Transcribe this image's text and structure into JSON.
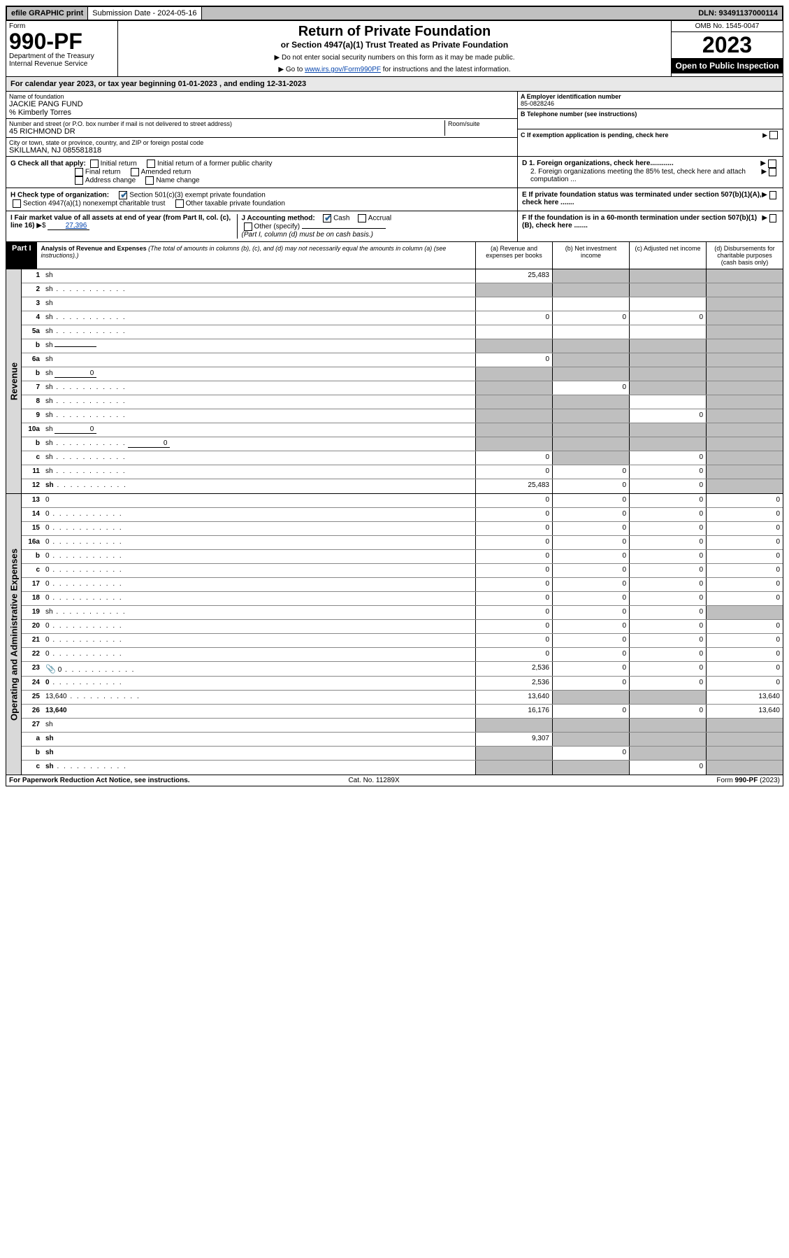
{
  "topbar": {
    "efile": "efile GRAPHIC print",
    "sub_label": "Submission Date - 2024-05-16",
    "dln": "DLN: 93491137000114"
  },
  "header": {
    "form_word": "Form",
    "form_num": "990-PF",
    "dept1": "Department of the Treasury",
    "dept2": "Internal Revenue Service",
    "title": "Return of Private Foundation",
    "subtitle": "or Section 4947(a)(1) Trust Treated as Private Foundation",
    "instr1": "▶ Do not enter social security numbers on this form as it may be made public.",
    "instr2_a": "▶ Go to ",
    "instr2_link": "www.irs.gov/Form990PF",
    "instr2_b": " for instructions and the latest information.",
    "omb": "OMB No. 1545-0047",
    "year": "2023",
    "open": "Open to Public Inspection"
  },
  "calendar": "For calendar year 2023, or tax year beginning 01-01-2023                          , and ending 12-31-2023",
  "info": {
    "name_lbl": "Name of foundation",
    "name": "JACKIE PANG FUND",
    "care_of": "% Kimberly Torres",
    "addr_lbl": "Number and street (or P.O. box number if mail is not delivered to street address)",
    "addr": "45 RICHMOND DR",
    "room_lbl": "Room/suite",
    "city_lbl": "City or town, state or province, country, and ZIP or foreign postal code",
    "city": "SKILLMAN, NJ  085581818",
    "ein_lbl": "A Employer identification number",
    "ein": "85-0828246",
    "tel_lbl": "B Telephone number (see instructions)",
    "exempt_lbl": "C If exemption application is pending, check here",
    "d1": "D 1. Foreign organizations, check here............",
    "d2": "2. Foreign organizations meeting the 85% test, check here and attach computation ...",
    "e": "E  If private foundation status was terminated under section 507(b)(1)(A), check here .......",
    "f": "F  If the foundation is in a 60-month termination under section 507(b)(1)(B), check here .......",
    "g_label": "G Check all that apply:",
    "g_opts": [
      "Initial return",
      "Initial return of a former public charity",
      "Final return",
      "Amended return",
      "Address change",
      "Name change"
    ],
    "h_label": "H Check type of organization:",
    "h_opts": [
      "Section 501(c)(3) exempt private foundation",
      "Section 4947(a)(1) nonexempt charitable trust",
      "Other taxable private foundation"
    ],
    "i_label": "I Fair market value of all assets at end of year (from Part II, col. (c), line 16)",
    "i_val": "27,396",
    "j_label": "J Accounting method:",
    "j_opts": [
      "Cash",
      "Accrual"
    ],
    "j_other": "Other (specify)",
    "j_note": "(Part I, column (d) must be on cash basis.)"
  },
  "part1": {
    "label": "Part I",
    "title": "Analysis of Revenue and Expenses",
    "note": "(The total of amounts in columns (b), (c), and (d) may not necessarily equal the amounts in column (a) (see instructions).)",
    "cols": [
      "(a)  Revenue and expenses per books",
      "(b)  Net investment income",
      "(c)  Adjusted net income",
      "(d)  Disbursements for charitable purposes (cash basis only)"
    ]
  },
  "side": {
    "revenue": "Revenue",
    "expenses": "Operating and Administrative Expenses"
  },
  "rows": [
    {
      "n": "1",
      "d": "sh",
      "a": "25,483",
      "b": "sh",
      "c": "sh"
    },
    {
      "n": "2",
      "d": "sh",
      "dots": true,
      "a": "sh",
      "b": "sh",
      "c": "sh"
    },
    {
      "n": "3",
      "d": "sh",
      "a": "",
      "b": "",
      "c": ""
    },
    {
      "n": "4",
      "d": "sh",
      "dots": true,
      "a": "0",
      "b": "0",
      "c": "0"
    },
    {
      "n": "5a",
      "d": "sh",
      "dots": true,
      "a": "",
      "b": "",
      "c": ""
    },
    {
      "n": "b",
      "d": "sh",
      "inline": "",
      "a": "sh",
      "b": "sh",
      "c": "sh"
    },
    {
      "n": "6a",
      "d": "sh",
      "a": "0",
      "b": "sh",
      "c": "sh"
    },
    {
      "n": "b",
      "d": "sh",
      "inline": "0",
      "a": "sh",
      "b": "sh",
      "c": "sh"
    },
    {
      "n": "7",
      "d": "sh",
      "dots": true,
      "a": "sh",
      "b": "0",
      "c": "sh"
    },
    {
      "n": "8",
      "d": "sh",
      "dots": true,
      "a": "sh",
      "b": "sh",
      "c": ""
    },
    {
      "n": "9",
      "d": "sh",
      "dots": true,
      "a": "sh",
      "b": "sh",
      "c": "0"
    },
    {
      "n": "10a",
      "d": "sh",
      "inline": "0",
      "a": "sh",
      "b": "sh",
      "c": "sh"
    },
    {
      "n": "b",
      "d": "sh",
      "dots": true,
      "inline": "0",
      "a": "sh",
      "b": "sh",
      "c": "sh"
    },
    {
      "n": "c",
      "d": "sh",
      "dots": true,
      "a": "0",
      "b": "sh",
      "c": "0"
    },
    {
      "n": "11",
      "d": "sh",
      "dots": true,
      "a": "0",
      "b": "0",
      "c": "0"
    },
    {
      "n": "12",
      "d": "sh",
      "dots": true,
      "bold": true,
      "a": "25,483",
      "b": "0",
      "c": "0"
    }
  ],
  "exp_rows": [
    {
      "n": "13",
      "d": "0",
      "a": "0",
      "b": "0",
      "c": "0"
    },
    {
      "n": "14",
      "d": "0",
      "dots": true,
      "a": "0",
      "b": "0",
      "c": "0"
    },
    {
      "n": "15",
      "d": "0",
      "dots": true,
      "a": "0",
      "b": "0",
      "c": "0"
    },
    {
      "n": "16a",
      "d": "0",
      "dots": true,
      "a": "0",
      "b": "0",
      "c": "0"
    },
    {
      "n": "b",
      "d": "0",
      "dots": true,
      "a": "0",
      "b": "0",
      "c": "0"
    },
    {
      "n": "c",
      "d": "0",
      "dots": true,
      "a": "0",
      "b": "0",
      "c": "0"
    },
    {
      "n": "17",
      "d": "0",
      "dots": true,
      "a": "0",
      "b": "0",
      "c": "0"
    },
    {
      "n": "18",
      "d": "0",
      "dots": true,
      "a": "0",
      "b": "0",
      "c": "0"
    },
    {
      "n": "19",
      "d": "sh",
      "dots": true,
      "a": "0",
      "b": "0",
      "c": "0"
    },
    {
      "n": "20",
      "d": "0",
      "dots": true,
      "a": "0",
      "b": "0",
      "c": "0"
    },
    {
      "n": "21",
      "d": "0",
      "dots": true,
      "a": "0",
      "b": "0",
      "c": "0"
    },
    {
      "n": "22",
      "d": "0",
      "dots": true,
      "a": "0",
      "b": "0",
      "c": "0"
    },
    {
      "n": "23",
      "d": "0",
      "dots": true,
      "icon": true,
      "a": "2,536",
      "b": "0",
      "c": "0"
    },
    {
      "n": "24",
      "d": "0",
      "dots": true,
      "bold": true,
      "a": "2,536",
      "b": "0",
      "c": "0"
    },
    {
      "n": "25",
      "d": "13,640",
      "dots": true,
      "a": "13,640",
      "b": "sh",
      "c": "sh"
    },
    {
      "n": "26",
      "d": "13,640",
      "bold": true,
      "a": "16,176",
      "b": "0",
      "c": "0"
    },
    {
      "n": "27",
      "d": "sh",
      "a": "sh",
      "b": "sh",
      "c": "sh"
    },
    {
      "n": "a",
      "d": "sh",
      "bold": true,
      "a": "9,307",
      "b": "sh",
      "c": "sh"
    },
    {
      "n": "b",
      "d": "sh",
      "bold": true,
      "a": "sh",
      "b": "0",
      "c": "sh"
    },
    {
      "n": "c",
      "d": "sh",
      "dots": true,
      "bold": true,
      "a": "sh",
      "b": "sh",
      "c": "0"
    }
  ],
  "footer": {
    "left": "For Paperwork Reduction Act Notice, see instructions.",
    "mid": "Cat. No. 11289X",
    "right": "Form 990-PF (2023)"
  }
}
